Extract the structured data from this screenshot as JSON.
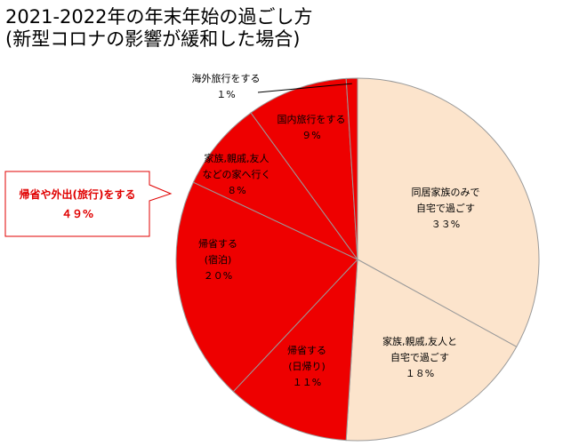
{
  "chart_data": {
    "type": "pie",
    "title": [
      "2021-2022年の年末年始の過ごし方",
      "(新型コロナの影響が緩和した場合)"
    ],
    "slices": [
      {
        "lines": [
          "同居家族のみで",
          "自宅で過ごす",
          "３３%"
        ],
        "value": 33,
        "color": "#fce4cc"
      },
      {
        "lines": [
          "家族,親戚,友人と",
          "自宅で過ごす",
          "１８%"
        ],
        "value": 18,
        "color": "#fce4cc"
      },
      {
        "lines": [
          "帰省する",
          "(日帰り)",
          "１１%"
        ],
        "value": 11,
        "color": "#ee0000"
      },
      {
        "lines": [
          "帰省する",
          "(宿泊)",
          "２０%"
        ],
        "value": 20,
        "color": "#ee0000"
      },
      {
        "lines": [
          "家族,親戚,友人",
          "などの家へ行く",
          "８%"
        ],
        "value": 8,
        "color": "#ee0000"
      },
      {
        "lines": [
          "国内旅行をする",
          "９%"
        ],
        "value": 9,
        "color": "#ee0000"
      },
      {
        "lines": [
          "海外旅行をする",
          "１%"
        ],
        "value": 1,
        "color": "#ee0000"
      }
    ],
    "callout": {
      "lines": [
        "帰省や外出(旅行)をする",
        "４９%"
      ]
    }
  }
}
